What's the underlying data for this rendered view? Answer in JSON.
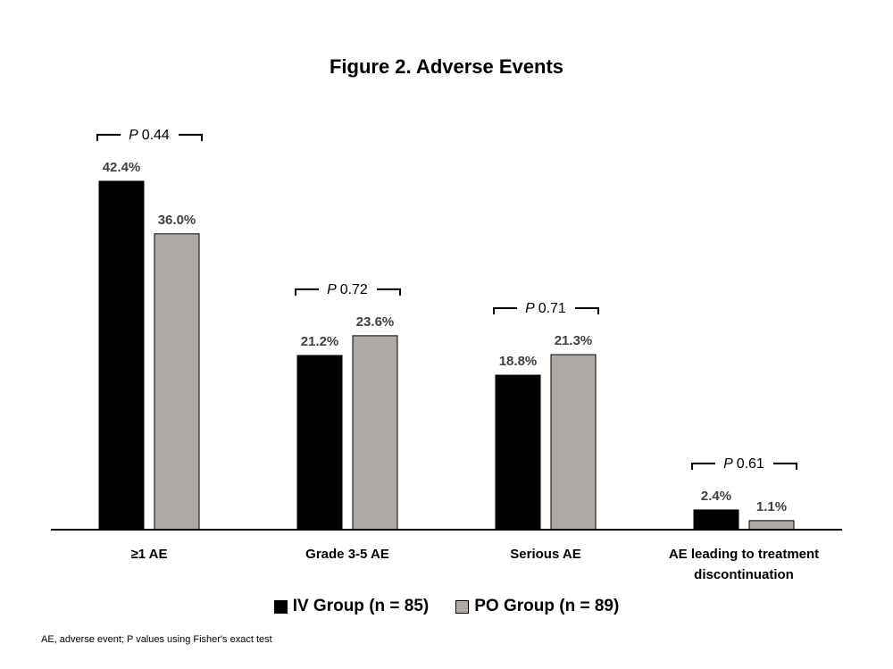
{
  "chart_data": {
    "type": "bar",
    "title": "Figure 2. Adverse Events",
    "categories": [
      [
        "≥1 AE"
      ],
      [
        "Grade 3-5 AE"
      ],
      [
        "Serious AE"
      ],
      [
        "AE leading to treatment",
        "discontinuation"
      ]
    ],
    "series": [
      {
        "name": "IV Group (n = 85)",
        "color": "#000000",
        "values": [
          42.4,
          21.2,
          18.8,
          2.4
        ],
        "labels": [
          "42.4%",
          "21.2%",
          "18.8%",
          "2.4%"
        ]
      },
      {
        "name": "PO Group (n = 89)",
        "color": "#aeaaa7",
        "values": [
          36.0,
          23.6,
          21.3,
          1.1
        ],
        "labels": [
          "36.0%",
          "23.6%",
          "21.3%",
          "1.1%"
        ]
      }
    ],
    "p_values": [
      "0.44",
      "0.72",
      "0.71",
      "0.61"
    ],
    "p_prefix": "P",
    "ylim": [
      0,
      45
    ],
    "grid": false,
    "legend_position": "bottom",
    "xlabel": "",
    "ylabel": ""
  },
  "footnote": "AE, adverse event; P values using Fisher's exact test"
}
